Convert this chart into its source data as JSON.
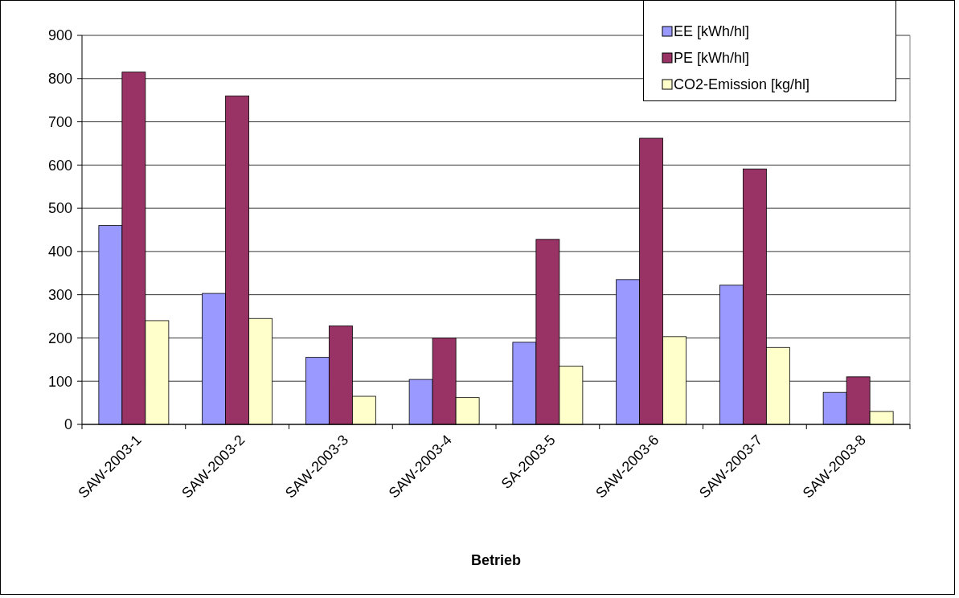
{
  "chart_data": {
    "type": "bar",
    "xlabel": "Betrieb",
    "categories": [
      "SAW-2003-1",
      "SAW-2003-2",
      "SAW-2003-3",
      "SAW-2003-4",
      "SA-2003-5",
      "SAW-2003-6",
      "SAW-2003-7",
      "SAW-2003-8"
    ],
    "series": [
      {
        "name": "EE [kWh/hl]",
        "color": "#9999ff",
        "values": [
          460,
          303,
          155,
          104,
          190,
          335,
          322,
          74
        ]
      },
      {
        "name": "PE [kWh/hl]",
        "color": "#993366",
        "values": [
          815,
          760,
          228,
          200,
          428,
          662,
          591,
          110
        ]
      },
      {
        "name": "CO2-Emission [kg/hl]",
        "color": "#ffffcc",
        "values": [
          240,
          245,
          65,
          62,
          135,
          203,
          178,
          30
        ]
      }
    ],
    "ylim": [
      0,
      900
    ],
    "yticks": [
      0,
      100,
      200,
      300,
      400,
      500,
      600,
      700,
      800,
      900
    ],
    "grid": "y",
    "legend": "top right"
  }
}
